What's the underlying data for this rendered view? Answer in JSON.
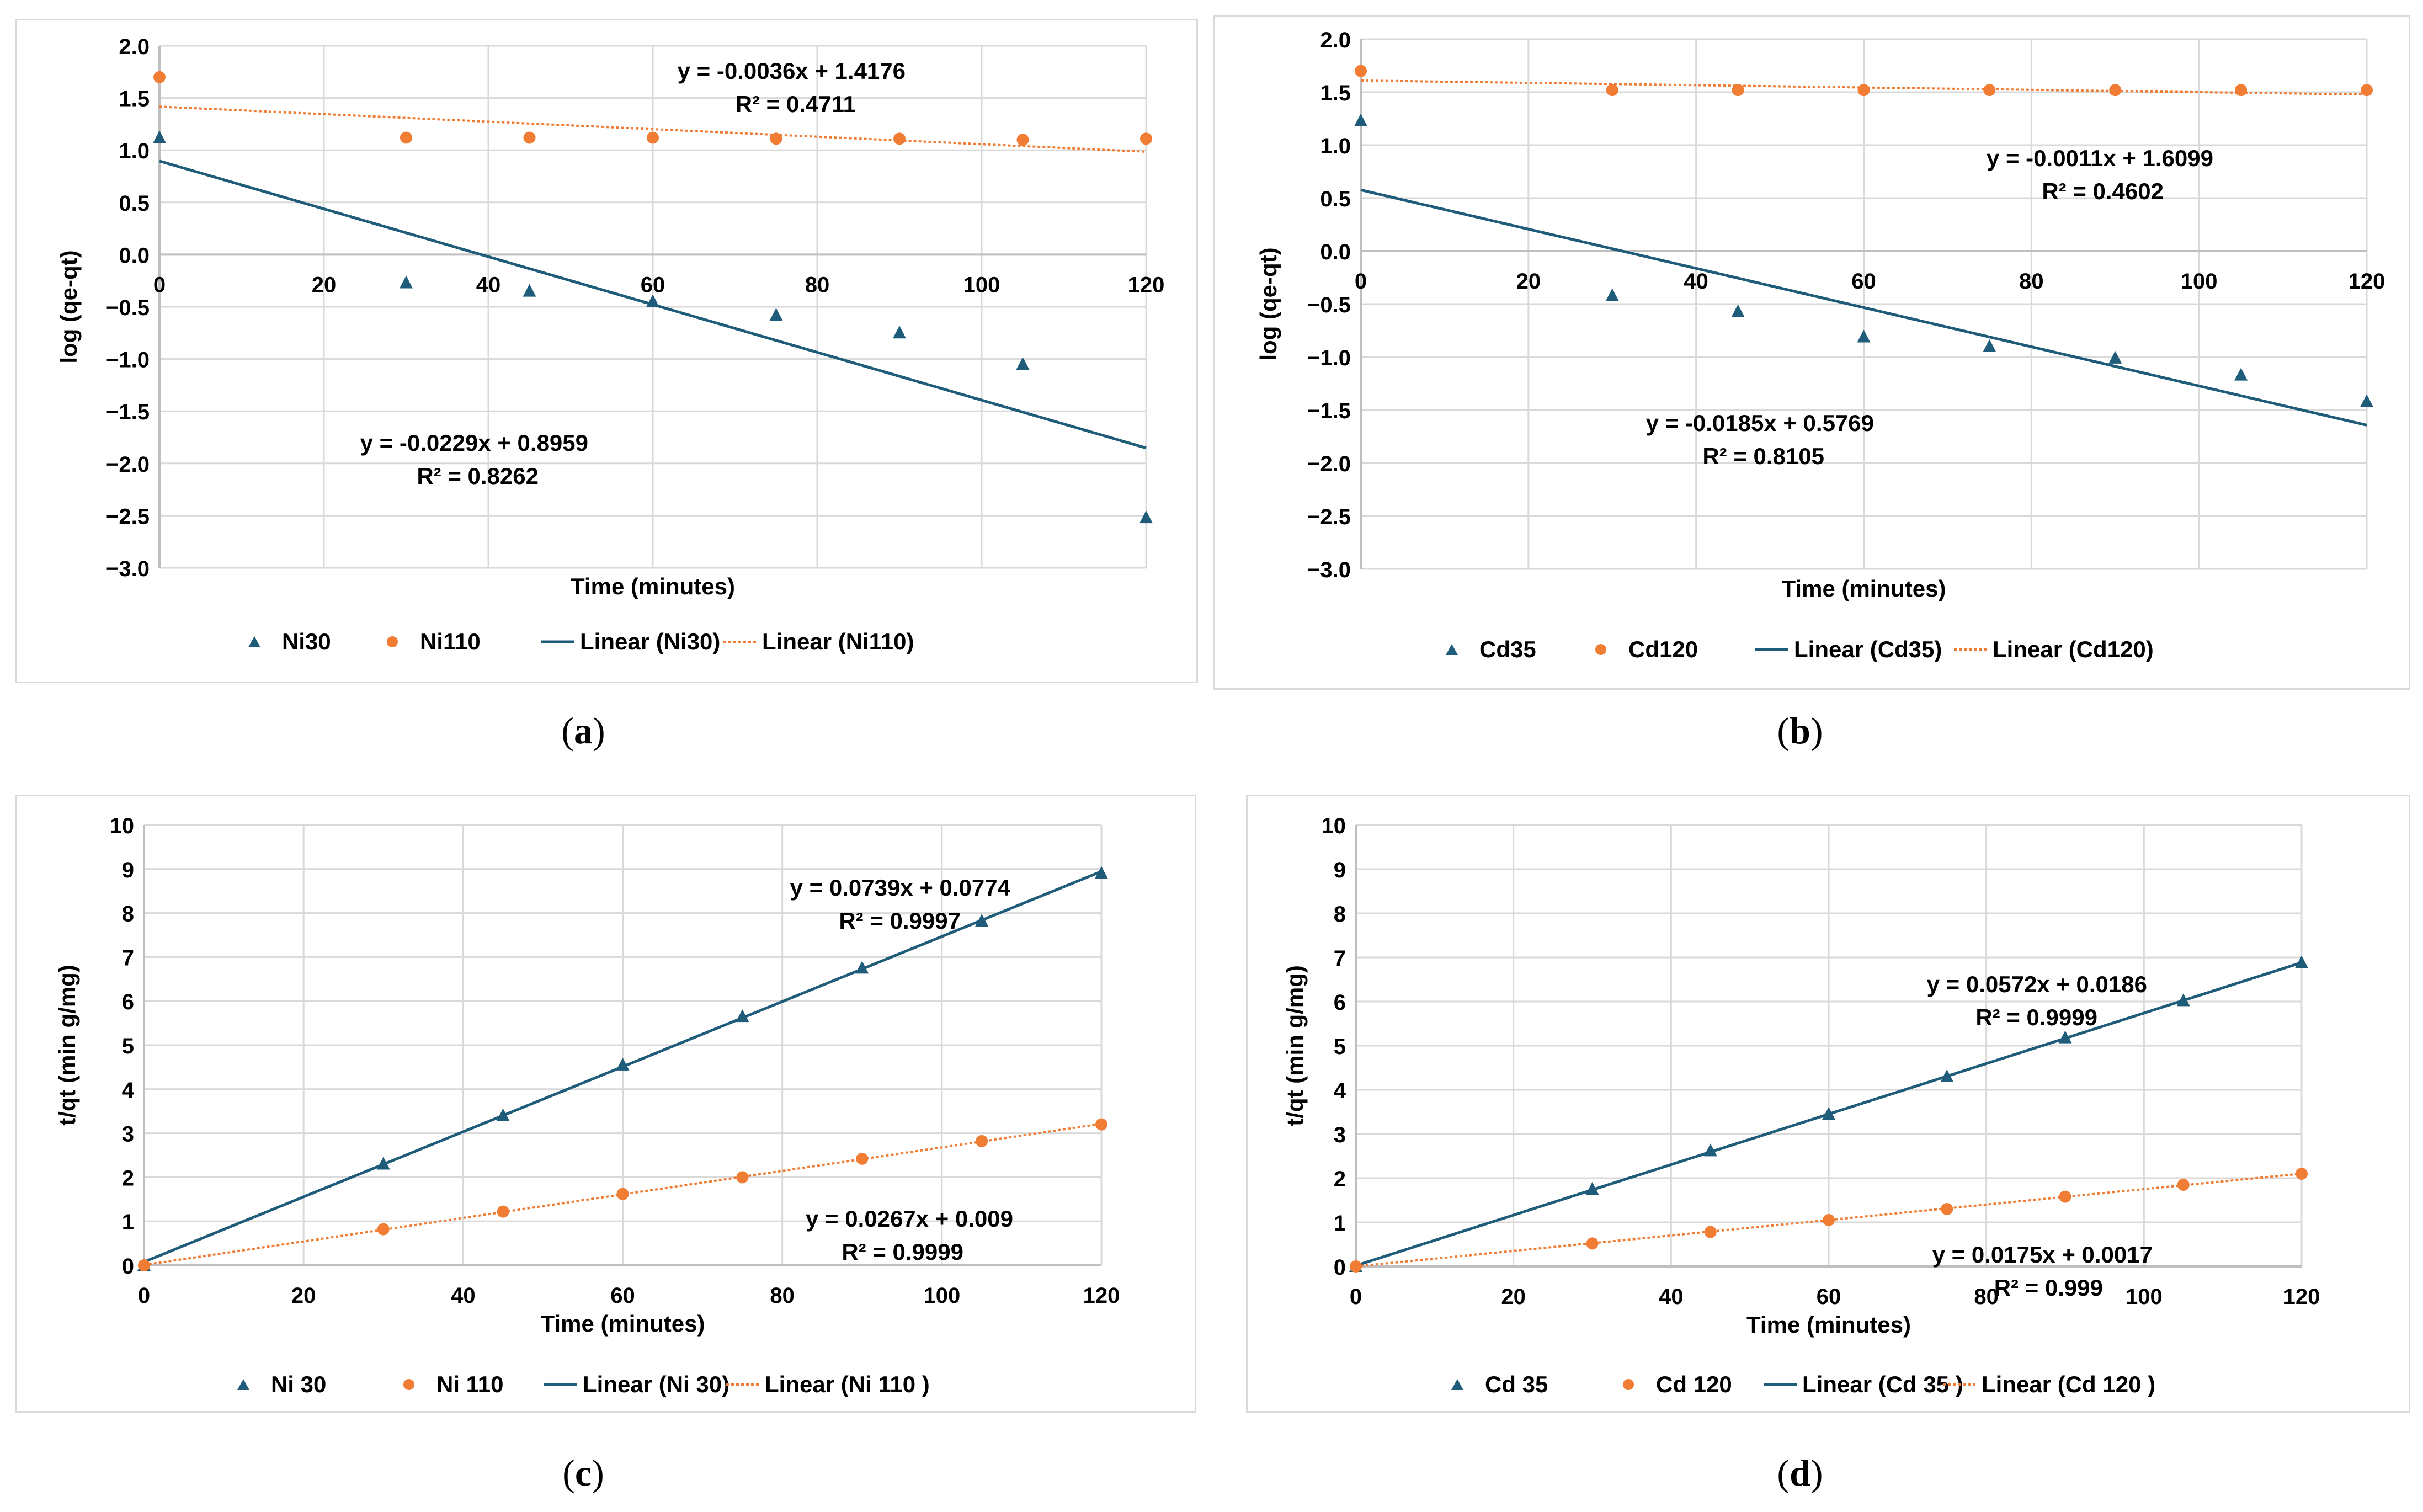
{
  "colors": {
    "ni_low": "#1f5c7a",
    "ni_high": "#f07d33",
    "grid": "#d9d9d9",
    "axis": "#bfbfbf",
    "text": "#000000"
  },
  "chart_data": [
    {
      "id": "a",
      "type": "scatter",
      "caption": "a",
      "xlabel": "Time (minutes)",
      "ylabel": "log (qe-qt)",
      "xlim": [
        0,
        120
      ],
      "ylim": [
        -3.0,
        2.0
      ],
      "xticks": [
        0,
        20,
        40,
        60,
        80,
        100,
        120
      ],
      "yticks": [
        -3.0,
        -2.5,
        -2.0,
        -1.5,
        -1.0,
        -0.5,
        0.0,
        0.5,
        1.0,
        1.5,
        2.0
      ],
      "ytick_labels": [
        "−3.0",
        "−2.5",
        "−2.0",
        "−1.5",
        "−1.0",
        "−0.5",
        "0.0",
        "0.5",
        "1.0",
        "1.5",
        "2.0"
      ],
      "series": [
        {
          "name": "Ni30",
          "marker": "triangle",
          "color": "#1f5c7a",
          "x": [
            0,
            30,
            45,
            60,
            75,
            90,
            105,
            120
          ],
          "y": [
            1.12,
            -0.27,
            -0.35,
            -0.45,
            -0.58,
            -0.75,
            -1.05,
            -2.52
          ],
          "fit": {
            "slope": -0.0229,
            "intercept": 0.8959,
            "style": "solid",
            "legend": "Linear (Ni30)"
          },
          "equation": "y = -0.0229x + 0.8959",
          "r2": "R² = 0.8262"
        },
        {
          "name": "Ni110",
          "marker": "circle",
          "color": "#f07d33",
          "x": [
            0,
            30,
            45,
            60,
            75,
            90,
            105,
            120
          ],
          "y": [
            1.7,
            1.12,
            1.12,
            1.12,
            1.11,
            1.11,
            1.1,
            1.11
          ],
          "fit": {
            "slope": -0.0036,
            "intercept": 1.4176,
            "style": "dotted",
            "legend": "Linear (Ni110)"
          },
          "equation": "y = -0.0036x + 1.4176",
          "r2": "R² = 0.4711"
        }
      ]
    },
    {
      "id": "b",
      "type": "scatter",
      "caption": "b",
      "xlabel": "Time (minutes)",
      "ylabel": "log (qe-qt)",
      "xlim": [
        0,
        120
      ],
      "ylim": [
        -3.0,
        2.0
      ],
      "xticks": [
        0,
        20,
        40,
        60,
        80,
        100,
        120
      ],
      "yticks": [
        -3.0,
        -2.5,
        -2.0,
        -1.5,
        -1.0,
        -0.5,
        0.0,
        0.5,
        1.0,
        1.5,
        2.0
      ],
      "ytick_labels": [
        "−3.0",
        "−2.5",
        "−2.0",
        "−1.5",
        "−1.0",
        "−0.5",
        "0.0",
        "0.5",
        "1.0",
        "1.5",
        "2.0"
      ],
      "series": [
        {
          "name": "Cd35",
          "marker": "triangle",
          "color": "#1f5c7a",
          "x": [
            0,
            30,
            45,
            60,
            75,
            90,
            105,
            120
          ],
          "y": [
            1.23,
            -0.42,
            -0.57,
            -0.81,
            -0.9,
            -1.01,
            -1.17,
            -1.42
          ],
          "fit": {
            "slope": -0.0185,
            "intercept": 0.5769,
            "style": "solid",
            "legend": "Linear (Cd35)"
          },
          "equation": "y = -0.0185x + 0.5769",
          "r2": "R² = 0.8105"
        },
        {
          "name": "Cd120",
          "marker": "circle",
          "color": "#f07d33",
          "x": [
            0,
            30,
            45,
            60,
            75,
            90,
            105,
            120
          ],
          "y": [
            1.7,
            1.52,
            1.52,
            1.52,
            1.52,
            1.52,
            1.52,
            1.52
          ],
          "fit": {
            "slope": -0.0011,
            "intercept": 1.6099,
            "style": "dotted",
            "legend": "Linear (Cd120)"
          },
          "equation": "y = -0.0011x + 1.6099",
          "r2": "R² = 0.4602"
        }
      ]
    },
    {
      "id": "c",
      "type": "scatter",
      "caption": "c",
      "xlabel": "Time (minutes)",
      "ylabel": "t/qt (min g/mg)",
      "xlim": [
        0,
        120
      ],
      "ylim": [
        0,
        10
      ],
      "xticks": [
        0,
        20,
        40,
        60,
        80,
        100,
        120
      ],
      "yticks": [
        0,
        1,
        2,
        3,
        4,
        5,
        6,
        7,
        8,
        9,
        10
      ],
      "ytick_labels": [
        "0",
        "1",
        "2",
        "3",
        "4",
        "5",
        "6",
        "7",
        "8",
        "9",
        "10"
      ],
      "series": [
        {
          "name": "Ni 30",
          "marker": "triangle",
          "color": "#1f5c7a",
          "x": [
            0,
            30,
            45,
            60,
            75,
            90,
            105,
            120
          ],
          "y": [
            0,
            2.3,
            3.4,
            4.55,
            5.65,
            6.75,
            7.82,
            8.9
          ],
          "fit": {
            "slope": 0.0739,
            "intercept": 0.0774,
            "style": "solid",
            "legend": "Linear (Ni 30)"
          },
          "equation": "y = 0.0739x + 0.0774",
          "r2": "R² = 0.9997"
        },
        {
          "name": "Ni 110",
          "marker": "circle",
          "color": "#f07d33",
          "x": [
            0,
            30,
            45,
            60,
            75,
            90,
            105,
            120
          ],
          "y": [
            0,
            0.82,
            1.22,
            1.62,
            2.0,
            2.42,
            2.82,
            3.2
          ],
          "fit": {
            "slope": 0.0267,
            "intercept": 0.009,
            "style": "dotted",
            "legend": "Linear (Ni 110 )"
          },
          "equation": "y = 0.0267x + 0.009",
          "r2": "R² = 0.9999"
        }
      ]
    },
    {
      "id": "d",
      "type": "scatter",
      "caption": "d",
      "xlabel": "Time (minutes)",
      "ylabel": "t/qt (min g/mg)",
      "xlim": [
        0,
        120
      ],
      "ylim": [
        0,
        10
      ],
      "xticks": [
        0,
        20,
        40,
        60,
        80,
        100,
        120
      ],
      "yticks": [
        0,
        1,
        2,
        3,
        4,
        5,
        6,
        7,
        8,
        9,
        10
      ],
      "ytick_labels": [
        "0",
        "1",
        "2",
        "3",
        "4",
        "5",
        "6",
        "7",
        "8",
        "9",
        "10"
      ],
      "series": [
        {
          "name": "Cd 35",
          "marker": "triangle",
          "color": "#1f5c7a",
          "x": [
            0,
            30,
            45,
            60,
            75,
            90,
            105,
            120
          ],
          "y": [
            0,
            1.75,
            2.62,
            3.45,
            4.3,
            5.18,
            6.02,
            6.88
          ],
          "fit": {
            "slope": 0.0572,
            "intercept": 0.0186,
            "style": "solid",
            "legend": "Linear (Cd 35 )"
          },
          "equation": "y = 0.0572x + 0.0186",
          "r2": "R² = 0.9999"
        },
        {
          "name": "Cd 120",
          "marker": "circle",
          "color": "#f07d33",
          "x": [
            0,
            30,
            45,
            60,
            75,
            90,
            105,
            120
          ],
          "y": [
            0,
            0.52,
            0.78,
            1.05,
            1.3,
            1.58,
            1.85,
            2.1
          ],
          "fit": {
            "slope": 0.0175,
            "intercept": 0.0017,
            "style": "dotted",
            "legend": "Linear (Cd 120 )"
          },
          "equation": "y = 0.0175x + 0.0017",
          "r2": "R² = 0.999"
        }
      ]
    }
  ]
}
